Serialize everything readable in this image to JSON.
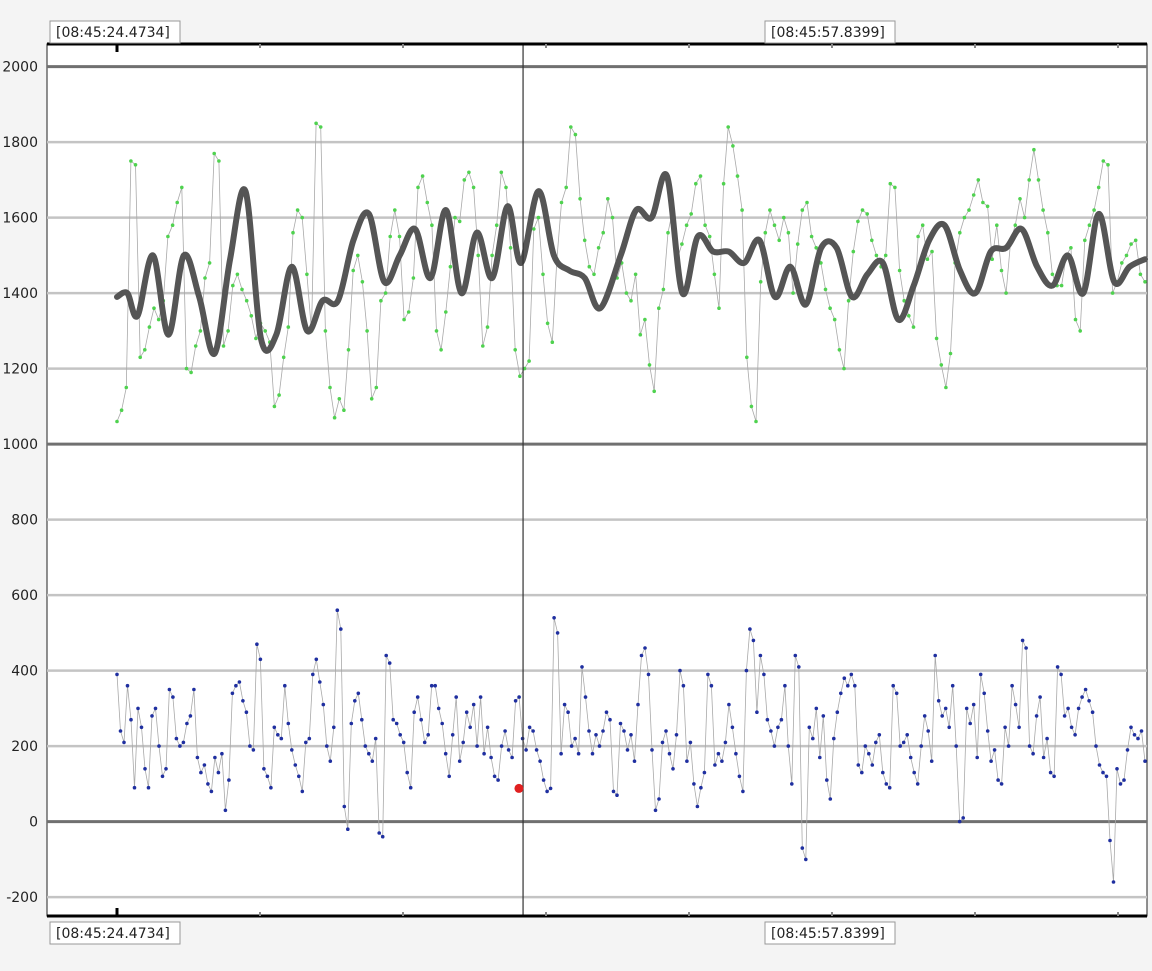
{
  "chart_data": {
    "type": "line",
    "title": "",
    "xlabel": "",
    "ylabel": "",
    "time_labels": {
      "top_left": "[08:45:24.4734]",
      "top_right": "[08:45:57.8399]",
      "bottom_left": "[08:45:24.4734]",
      "bottom_right": "[08:45:57.8399]"
    },
    "ylim": [
      -250,
      2060
    ],
    "yticks": [
      -200,
      0,
      200,
      400,
      600,
      800,
      1000,
      1200,
      1400,
      1600,
      1800,
      2000
    ],
    "grid": true,
    "cursor_fraction": 0.395,
    "marker": {
      "x_fraction": 0.391,
      "y": 88
    },
    "colors": {
      "upper_points": "#4fd24f",
      "lower_points": "#1f2fa0",
      "smooth_line": "#555555",
      "connector": "#a9a9a9",
      "grid": "#c4c4c4",
      "axis_line": "#707070",
      "marker": "#e02020"
    },
    "smooth_series": {
      "x_fraction": [
        0,
        0.01,
        0.02,
        0.035,
        0.05,
        0.065,
        0.08,
        0.095,
        0.11,
        0.125,
        0.14,
        0.155,
        0.17,
        0.185,
        0.2,
        0.215,
        0.23,
        0.245,
        0.26,
        0.275,
        0.29,
        0.305,
        0.32,
        0.335,
        0.35,
        0.365,
        0.38,
        0.393,
        0.41,
        0.425,
        0.44,
        0.455,
        0.47,
        0.49,
        0.505,
        0.52,
        0.535,
        0.55,
        0.565,
        0.58,
        0.595,
        0.61,
        0.625,
        0.64,
        0.655,
        0.67,
        0.685,
        0.7,
        0.715,
        0.73,
        0.745,
        0.76,
        0.775,
        0.79,
        0.805,
        0.82,
        0.835,
        0.85,
        0.865,
        0.88,
        0.895,
        0.91,
        0.925,
        0.94,
        0.955,
        0.97,
        0.985,
        1
      ],
      "y": [
        1390,
        1400,
        1340,
        1500,
        1290,
        1500,
        1390,
        1240,
        1490,
        1670,
        1280,
        1290,
        1470,
        1300,
        1380,
        1380,
        1540,
        1610,
        1430,
        1500,
        1570,
        1440,
        1620,
        1400,
        1560,
        1440,
        1630,
        1480,
        1670,
        1500,
        1460,
        1440,
        1360,
        1500,
        1620,
        1600,
        1710,
        1400,
        1550,
        1510,
        1510,
        1480,
        1540,
        1390,
        1470,
        1370,
        1520,
        1520,
        1390,
        1450,
        1480,
        1330,
        1420,
        1540,
        1580,
        1460,
        1400,
        1510,
        1520,
        1570,
        1470,
        1420,
        1500,
        1400,
        1610,
        1430,
        1470,
        1490
      ]
    },
    "series": [
      {
        "values": [
          1060,
          1090,
          1150,
          1750,
          1740,
          1230,
          1250,
          1310,
          1360,
          1330,
          1380,
          1550,
          1580,
          1640,
          1680,
          1200,
          1190,
          1260,
          1300,
          1440,
          1480,
          1770,
          1750,
          1260,
          1300,
          1420,
          1450,
          1410,
          1380,
          1340,
          1280,
          1320,
          1300,
          1270,
          1100,
          1130,
          1230,
          1310,
          1560,
          1620,
          1600,
          1450,
          1300,
          1850,
          1840,
          1300,
          1150,
          1070,
          1120,
          1090,
          1250,
          1460,
          1500,
          1430,
          1300,
          1120,
          1150,
          1380,
          1400,
          1550,
          1620,
          1550,
          1330,
          1350,
          1440,
          1680,
          1710,
          1640,
          1580,
          1300,
          1250,
          1350,
          1470,
          1600,
          1590,
          1700,
          1720,
          1680,
          1500,
          1260,
          1310,
          1500,
          1580,
          1720,
          1680,
          1520,
          1250,
          1180,
          1200,
          1220,
          1570,
          1600,
          1450,
          1320,
          1270,
          1490,
          1640,
          1680,
          1840,
          1820,
          1650,
          1540,
          1470,
          1450,
          1520,
          1560,
          1650,
          1600,
          1440,
          1480,
          1400,
          1380,
          1450,
          1290,
          1330,
          1210,
          1140,
          1360,
          1410,
          1560,
          1620,
          1490,
          1530,
          1580,
          1610,
          1690,
          1710,
          1580,
          1550,
          1450,
          1360,
          1690,
          1840,
          1790,
          1710,
          1620,
          1230,
          1100,
          1060,
          1430,
          1560,
          1620,
          1580,
          1540,
          1600,
          1560,
          1400,
          1530,
          1620,
          1640,
          1550,
          1520,
          1480,
          1410,
          1360,
          1330,
          1250,
          1200,
          1380,
          1510,
          1590,
          1620,
          1610,
          1540,
          1500,
          1470,
          1500,
          1690,
          1680,
          1460,
          1380,
          1340,
          1310,
          1550,
          1580,
          1490,
          1510,
          1280,
          1210,
          1150,
          1240,
          1480,
          1560,
          1600,
          1620,
          1660,
          1700,
          1640,
          1630,
          1490,
          1580,
          1460,
          1400,
          1540,
          1580,
          1650,
          1600,
          1700,
          1780,
          1700,
          1620,
          1560,
          1450,
          1420,
          1420,
          1500,
          1520,
          1330,
          1300,
          1540,
          1580,
          1620,
          1680,
          1750,
          1740,
          1400,
          1430,
          1480,
          1500,
          1530,
          1540,
          1450,
          1430
        ]
      },
      {
        "values": [
          390,
          240,
          210,
          360,
          270,
          90,
          300,
          250,
          140,
          90,
          280,
          300,
          200,
          120,
          140,
          350,
          330,
          220,
          200,
          210,
          260,
          280,
          350,
          170,
          130,
          150,
          100,
          80,
          170,
          130,
          180,
          30,
          110,
          340,
          360,
          370,
          320,
          290,
          200,
          190,
          470,
          430,
          140,
          120,
          90,
          250,
          230,
          220,
          360,
          260,
          190,
          150,
          120,
          80,
          210,
          220,
          390,
          430,
          370,
          310,
          200,
          160,
          250,
          560,
          510,
          40,
          -20,
          260,
          320,
          340,
          270,
          200,
          180,
          160,
          220,
          -30,
          -40,
          440,
          420,
          270,
          260,
          230,
          210,
          130,
          90,
          290,
          330,
          270,
          210,
          230,
          360,
          360,
          300,
          260,
          180,
          120,
          230,
          330,
          160,
          210,
          290,
          250,
          310,
          200,
          330,
          180,
          250,
          170,
          120,
          110,
          200,
          240,
          190,
          170,
          320,
          330,
          220,
          190,
          250,
          240,
          190,
          160,
          110,
          80,
          88,
          540,
          500,
          180,
          310,
          290,
          200,
          220,
          180,
          410,
          330,
          240,
          180,
          230,
          200,
          240,
          290,
          270,
          80,
          70,
          260,
          240,
          190,
          230,
          160,
          310,
          440,
          460,
          390,
          190,
          30,
          60,
          210,
          240,
          180,
          140,
          230,
          400,
          360,
          160,
          210,
          100,
          40,
          90,
          130,
          390,
          360,
          150,
          180,
          160,
          210,
          310,
          250,
          180,
          120,
          80,
          400,
          510,
          480,
          290,
          440,
          390,
          270,
          240,
          200,
          250,
          270,
          360,
          200,
          100,
          440,
          410,
          -70,
          -100,
          250,
          220,
          300,
          170,
          280,
          110,
          60,
          220,
          290,
          340,
          380,
          360,
          390,
          360,
          150,
          130,
          200,
          180,
          150,
          210,
          230,
          130,
          100,
          90,
          360,
          340,
          200,
          210,
          230,
          170,
          130,
          100,
          200,
          280,
          240,
          160,
          440,
          320,
          280,
          300,
          250,
          360,
          200,
          0,
          10,
          300,
          260,
          310,
          170,
          390,
          340,
          240,
          160,
          190,
          110,
          100,
          250,
          200,
          360,
          310,
          250,
          480,
          460,
          200,
          180,
          280,
          330,
          170,
          220,
          130,
          120,
          410,
          390,
          280,
          300,
          250,
          230,
          300,
          330,
          350,
          320,
          290,
          200,
          150,
          130,
          120,
          -50,
          -160,
          140,
          100,
          110,
          190,
          250,
          230,
          220,
          240,
          160
        ]
      }
    ]
  }
}
